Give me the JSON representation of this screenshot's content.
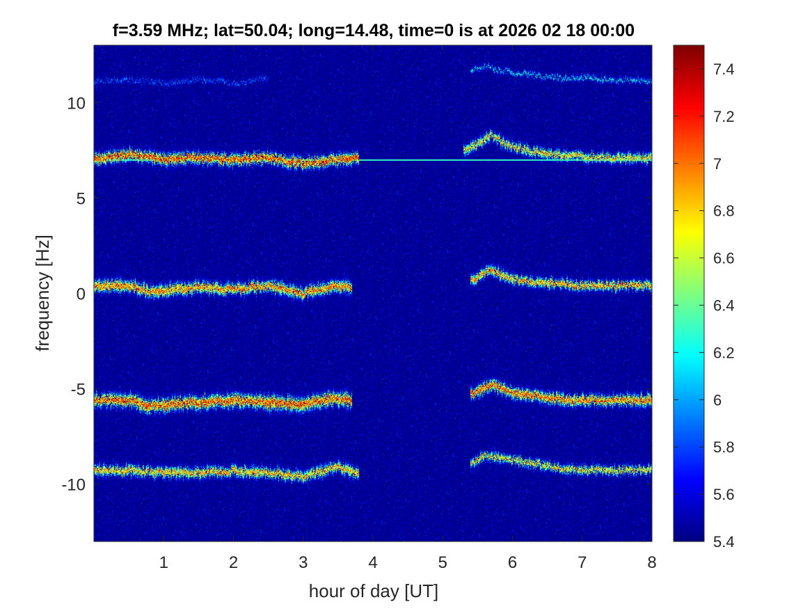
{
  "chart_data": {
    "type": "heatmap",
    "title": "f=3.59 MHz;  lat=50.04; long=14.48, time=0 is at 2026 02 18 00:00",
    "xlabel": "hour of day [UT]",
    "ylabel": "frequency [Hz]",
    "xlim": [
      0,
      8
    ],
    "ylim": [
      -13,
      13
    ],
    "x_ticks": [
      1,
      2,
      3,
      4,
      5,
      6,
      7,
      8
    ],
    "y_ticks": [
      -10,
      -5,
      0,
      5,
      10
    ],
    "colorbar": {
      "colormap": "jet",
      "clim": [
        5.4,
        7.5
      ],
      "ticks": [
        5.4,
        5.6,
        5.8,
        6,
        6.2,
        6.4,
        6.6,
        6.8,
        7,
        7.2,
        7.4
      ],
      "background_value": 5.45
    },
    "traces": [
      {
        "points": [
          [
            0,
            11.1
          ],
          [
            0.5,
            11.2
          ],
          [
            1,
            11.0
          ],
          [
            1.5,
            11.2
          ],
          [
            2.1,
            11.0
          ],
          [
            2.5,
            11.3
          ]
        ],
        "peak": 6.0,
        "width": 0.12,
        "density": 0.55
      },
      {
        "points": [
          [
            5.4,
            11.7
          ],
          [
            5.6,
            11.9
          ],
          [
            5.8,
            11.7
          ],
          [
            6.2,
            11.5
          ],
          [
            6.6,
            11.3
          ],
          [
            7,
            11.3
          ],
          [
            7.4,
            11.2
          ],
          [
            8,
            11.1
          ]
        ],
        "peak": 6.3,
        "width": 0.12,
        "density": 0.7
      },
      {
        "points": [
          [
            0,
            7.0
          ],
          [
            0.5,
            7.3
          ],
          [
            1,
            7.0
          ],
          [
            1.5,
            7.1
          ],
          [
            2,
            7.0
          ],
          [
            2.5,
            7.1
          ],
          [
            3,
            6.8
          ],
          [
            3.5,
            7.0
          ],
          [
            3.8,
            7.1
          ]
        ],
        "peak": 7.45,
        "width": 0.25,
        "density": 1.0
      },
      {
        "points": [
          [
            5.3,
            7.5
          ],
          [
            5.5,
            7.8
          ],
          [
            5.7,
            8.3
          ],
          [
            5.9,
            7.8
          ],
          [
            6.3,
            7.4
          ],
          [
            6.8,
            7.2
          ],
          [
            7.4,
            7.1
          ],
          [
            8,
            7.1
          ]
        ],
        "peak": 7.0,
        "width": 0.22,
        "density": 0.9
      },
      {
        "points": [
          [
            0,
            0.4
          ],
          [
            0.5,
            0.4
          ],
          [
            0.8,
            0.1
          ],
          [
            1.5,
            0.3
          ],
          [
            2,
            0.2
          ],
          [
            2.5,
            0.4
          ],
          [
            3,
            0.0
          ],
          [
            3.5,
            0.4
          ],
          [
            3.7,
            0.3
          ]
        ],
        "peak": 7.25,
        "width": 0.26,
        "density": 1.0
      },
      {
        "points": [
          [
            5.4,
            0.6
          ],
          [
            5.7,
            1.3
          ],
          [
            5.9,
            0.8
          ],
          [
            6.3,
            0.6
          ],
          [
            6.7,
            0.5
          ],
          [
            7,
            0.4
          ],
          [
            7.5,
            0.4
          ],
          [
            8,
            0.4
          ]
        ],
        "peak": 7.15,
        "width": 0.22,
        "density": 0.95
      },
      {
        "points": [
          [
            0,
            -5.6
          ],
          [
            0.5,
            -5.6
          ],
          [
            0.8,
            -5.9
          ],
          [
            1.5,
            -5.7
          ],
          [
            2,
            -5.6
          ],
          [
            2.5,
            -5.7
          ],
          [
            3,
            -5.8
          ],
          [
            3.5,
            -5.5
          ],
          [
            3.7,
            -5.6
          ]
        ],
        "peak": 7.4,
        "width": 0.3,
        "density": 1.0
      },
      {
        "points": [
          [
            5.4,
            -5.3
          ],
          [
            5.7,
            -4.8
          ],
          [
            6,
            -5.2
          ],
          [
            6.4,
            -5.4
          ],
          [
            6.8,
            -5.6
          ],
          [
            7.2,
            -5.6
          ],
          [
            7.6,
            -5.6
          ],
          [
            8,
            -5.6
          ]
        ],
        "peak": 7.3,
        "width": 0.25,
        "density": 1.0
      },
      {
        "points": [
          [
            0,
            -9.3
          ],
          [
            0.5,
            -9.3
          ],
          [
            1,
            -9.4
          ],
          [
            1.5,
            -9.4
          ],
          [
            2,
            -9.3
          ],
          [
            2.5,
            -9.4
          ],
          [
            3,
            -9.6
          ],
          [
            3.5,
            -9.1
          ],
          [
            3.8,
            -9.5
          ]
        ],
        "peak": 7.1,
        "width": 0.24,
        "density": 0.95
      },
      {
        "points": [
          [
            5.4,
            -8.9
          ],
          [
            5.6,
            -8.5
          ],
          [
            5.9,
            -8.7
          ],
          [
            6.3,
            -8.9
          ],
          [
            6.8,
            -9.2
          ],
          [
            7.3,
            -9.3
          ],
          [
            8,
            -9.2
          ]
        ],
        "peak": 7.0,
        "width": 0.2,
        "density": 0.9
      }
    ],
    "line": {
      "x_range": [
        0,
        8
      ],
      "y": 7.0,
      "value": 6.3
    }
  }
}
